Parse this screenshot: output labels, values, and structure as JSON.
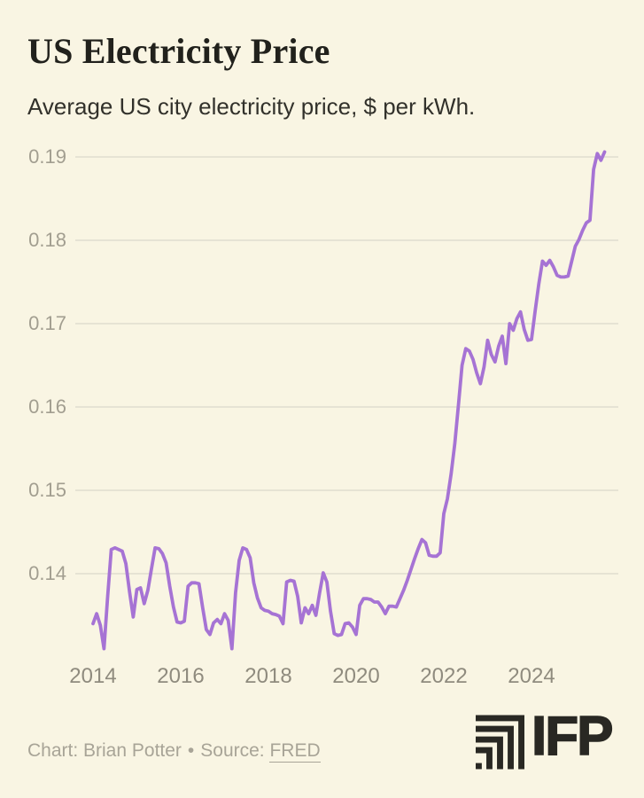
{
  "header": {
    "title": "US Electricity Price",
    "subtitle": "Average US city electricity price, $ per kWh."
  },
  "footer": {
    "credit": "Chart: Brian Potter",
    "bullet": "•",
    "source_label": "Source:",
    "source_link": "FRED"
  },
  "logo": {
    "text": "IFP"
  },
  "colors": {
    "background": "#f9f5e3",
    "line": "#a673d4",
    "gridline": "#e0ddcf",
    "title_text": "#21211c",
    "subtitle_text": "#32312b",
    "y_tick_text": "#a29e90",
    "x_tick_text": "#8f8b7e",
    "footer_text": "#a8a497",
    "logo_color": "#292823"
  },
  "chart_data": {
    "type": "line",
    "title": "US Electricity Price",
    "subtitle": "Average US city electricity price, $ per kWh.",
    "ylabel": "$ per kWh",
    "frequency": "monthly",
    "x_start": "2014-01",
    "x_end": "2025-09",
    "x_tick_years": [
      2014,
      2016,
      2018,
      2020,
      2022,
      2024
    ],
    "x_tick_labels": [
      "2014",
      "2016",
      "2018",
      "2020",
      "2022",
      "2024"
    ],
    "y_ticks": [
      0.19,
      0.18,
      0.17,
      0.16,
      0.15,
      0.14
    ],
    "y_tick_labels": [
      "0.19",
      "0.18",
      "0.17",
      "0.16",
      "0.15",
      "0.14"
    ],
    "ylim": [
      0.129,
      0.193
    ],
    "grid": "horizontal",
    "legend": "none",
    "values": [
      0.134,
      0.1352,
      0.1338,
      0.131,
      0.1372,
      0.1429,
      0.1431,
      0.1429,
      0.1427,
      0.1412,
      0.1378,
      0.1348,
      0.1381,
      0.1383,
      0.1364,
      0.138,
      0.1406,
      0.1431,
      0.143,
      0.1424,
      0.1413,
      0.1385,
      0.136,
      0.1342,
      0.1341,
      0.1343,
      0.1385,
      0.1389,
      0.1389,
      0.1388,
      0.1359,
      0.1333,
      0.1327,
      0.1341,
      0.1345,
      0.134,
      0.1352,
      0.1344,
      0.131,
      0.1377,
      0.1416,
      0.1431,
      0.1429,
      0.1419,
      0.1389,
      0.1371,
      0.1359,
      0.1356,
      0.1355,
      0.1352,
      0.1351,
      0.1349,
      0.134,
      0.139,
      0.1392,
      0.1391,
      0.1373,
      0.1341,
      0.1359,
      0.1352,
      0.1362,
      0.135,
      0.1377,
      0.1401,
      0.139,
      0.1355,
      0.1328,
      0.1326,
      0.1327,
      0.134,
      0.1341,
      0.1336,
      0.1327,
      0.1362,
      0.137,
      0.137,
      0.1369,
      0.1366,
      0.1366,
      0.136,
      0.1352,
      0.1361,
      0.1361,
      0.136,
      0.137,
      0.138,
      0.1392,
      0.1405,
      0.1418,
      0.143,
      0.1441,
      0.1437,
      0.1422,
      0.1421,
      0.1421,
      0.1425,
      0.1472,
      0.149,
      0.152,
      0.1556,
      0.1602,
      0.165,
      0.167,
      0.1667,
      0.1657,
      0.1641,
      0.1628,
      0.1648,
      0.168,
      0.1663,
      0.1654,
      0.1673,
      0.1685,
      0.1652,
      0.17,
      0.1692,
      0.1706,
      0.1714,
      0.1693,
      0.168,
      0.1681,
      0.1715,
      0.1748,
      0.1775,
      0.177,
      0.1776,
      0.1768,
      0.1758,
      0.1756,
      0.1756,
      0.1757,
      0.1775,
      0.1793,
      0.1801,
      0.1812,
      0.1821,
      0.1824,
      0.1885,
      0.1904,
      0.1896,
      0.1906
    ]
  }
}
